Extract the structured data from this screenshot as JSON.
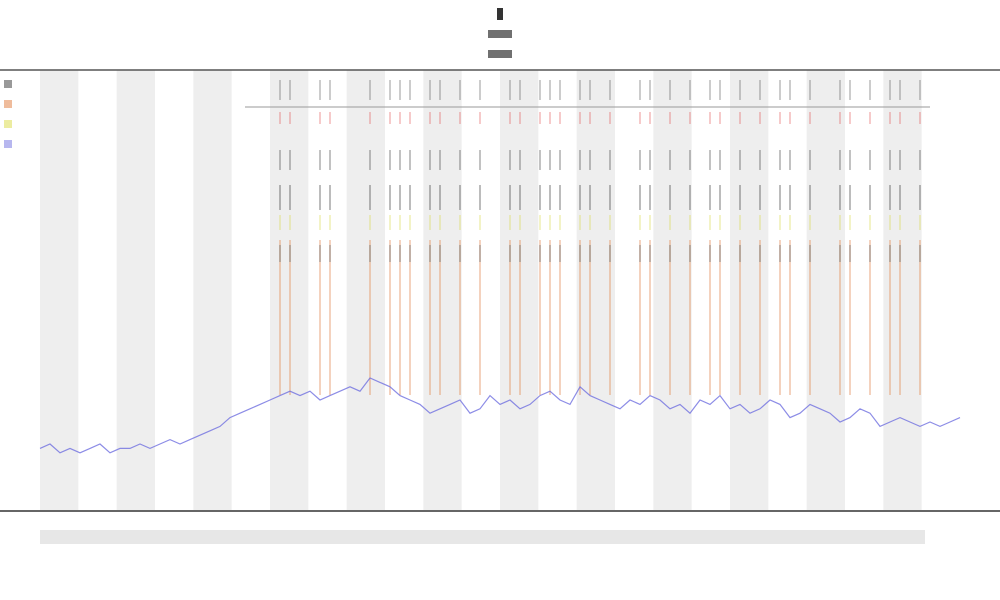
{
  "chart_data": {
    "type": "line",
    "color": "#6f6fe0",
    "event_color": "#e07a3a",
    "ylim": [
      0,
      100
    ],
    "values": [
      14,
      15,
      13,
      14,
      13,
      14,
      15,
      13,
      14,
      14,
      15,
      14,
      15,
      16,
      15,
      16,
      17,
      18,
      19,
      21,
      22,
      23,
      24,
      25,
      26,
      27,
      26,
      27,
      25,
      26,
      27,
      28,
      27,
      30,
      29,
      28,
      26,
      25,
      24,
      22,
      23,
      24,
      25,
      22,
      23,
      26,
      24,
      25,
      23,
      24,
      26,
      27,
      25,
      24,
      28,
      26,
      25,
      24,
      23,
      25,
      24,
      26,
      25,
      23,
      24,
      22,
      25,
      24,
      26,
      23,
      24,
      22,
      23,
      25,
      24,
      21,
      22,
      24,
      23,
      22,
      20,
      21,
      23,
      22,
      19,
      20,
      21,
      20,
      19,
      20,
      19,
      20,
      21
    ],
    "events": [
      24,
      25,
      28,
      29,
      33,
      35,
      36,
      37,
      39,
      40,
      42,
      44,
      47,
      48,
      50,
      51,
      52,
      54,
      55,
      57,
      60,
      61,
      63,
      65,
      67,
      68,
      70,
      72,
      74,
      75,
      77,
      80,
      81,
      83,
      85,
      86,
      88
    ]
  }
}
